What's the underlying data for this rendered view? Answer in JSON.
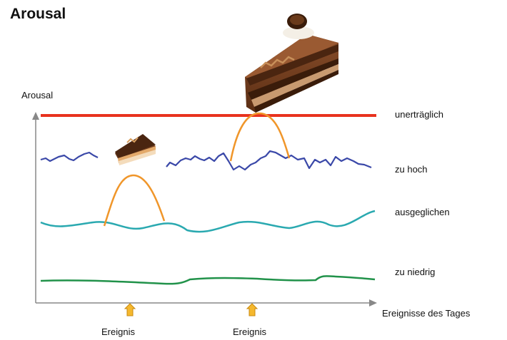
{
  "title": "Arousal",
  "y_axis_label": "Arousal",
  "x_axis_label": "Ereignisse des Tages",
  "levels": {
    "unbearable": "unerträglich",
    "too_high": "zu hoch",
    "balanced": "ausgeglichen",
    "too_low": "zu niedrig"
  },
  "events": [
    "Ereignis",
    "Ereignis"
  ],
  "colors": {
    "unbearable": "#e8321e",
    "too_high": "#3a48a8",
    "balanced": "#2aa9b0",
    "too_low": "#21924a",
    "spike": "#f0962a",
    "arrow": "#f5b82e",
    "axis": "#888888"
  },
  "images": [
    "cake-slice-small",
    "cake-slice-large"
  ]
}
